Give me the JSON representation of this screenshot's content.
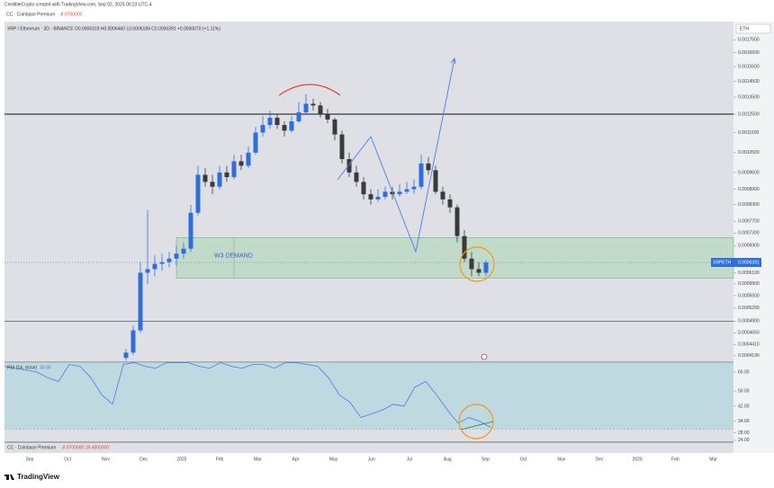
{
  "header": "CredibleCrypto created with TradingView.com, Sep 02, 2025 00:23 UTC-4",
  "toolbar": {
    "indicator": "CC · Coinbase Premium",
    "value": "-8.9700000"
  },
  "footer": "TradingView",
  "chart_data": {
    "type": "candlestick",
    "symbol_info": "XRP / Ethereum · 3D · BINANCE   O0.0006319 H0.0006460 L0.0006184 C0.0006391 +0.0000070 (+1.11%)",
    "currency": "ETH",
    "log_scale": true,
    "up_color": "#2f6fdc",
    "down_color": "#3a3a3a",
    "ylim": [
      0.000407,
      0.0019
    ],
    "yticks": [
      {
        "value": 0.00175,
        "label": "0.0017500"
      },
      {
        "value": 0.00165,
        "label": "0.0016500"
      },
      {
        "value": 0.00155,
        "label": "0.0015500"
      },
      {
        "value": 0.00145,
        "label": "0.0014500"
      },
      {
        "value": 0.00135,
        "label": "0.0013500"
      },
      {
        "value": 0.00125,
        "label": "0.0012500"
      },
      {
        "value": 0.00115,
        "label": "0.0011500"
      },
      {
        "value": 0.00105,
        "label": "0.0010500"
      },
      {
        "value": 0.00096,
        "label": "0.0009600"
      },
      {
        "value": 0.00089,
        "label": "0.0008900"
      },
      {
        "value": 0.00083,
        "label": "0.0008300"
      },
      {
        "value": 0.00077,
        "label": "0.0007700"
      },
      {
        "value": 0.00073,
        "label": "0.0007300"
      },
      {
        "value": 0.00069,
        "label": "0.0006900"
      },
      {
        "value": 0.00061,
        "label": "0.0006100"
      },
      {
        "value": 0.00058,
        "label": "0.0005800"
      },
      {
        "value": 0.00055,
        "label": "0.0005500"
      },
      {
        "value": 0.00052,
        "label": "0.0005200"
      },
      {
        "value": 0.00049,
        "label": "0.0004900"
      },
      {
        "value": 0.000465,
        "label": "0.0004650"
      },
      {
        "value": 0.000441,
        "label": "0.0004410"
      },
      {
        "value": 0.000419,
        "label": "0.0004190"
      }
    ],
    "time_labels": [
      "Sep",
      "Oct",
      "Nov",
      "Dec",
      "2025",
      "Feb",
      "Mar",
      "Apr",
      "May",
      "Jun",
      "Jul",
      "Aug",
      "Sep",
      "Oct",
      "Nov",
      "Dec",
      "2026",
      "Feb",
      "Mar"
    ],
    "ohlc": [
      [
        0.000415,
        0.000432,
        0.00041,
        0.000425
      ],
      [
        0.000425,
        0.00048,
        0.00042,
        0.00047
      ],
      [
        0.00047,
        0.00064,
        0.000465,
        0.00061
      ],
      [
        0.00061,
        0.00081,
        0.00058,
        0.00062
      ],
      [
        0.00062,
        0.00066,
        0.0006,
        0.000635
      ],
      [
        0.000635,
        0.000665,
        0.000615,
        0.00064
      ],
      [
        0.00064,
        0.00067,
        0.000625,
        0.00065
      ],
      [
        0.00065,
        0.00069,
        0.00063,
        0.000665
      ],
      [
        0.000665,
        0.0007,
        0.00065,
        0.00068
      ],
      [
        0.00068,
        0.00083,
        0.00067,
        0.0008
      ],
      [
        0.0008,
        0.00099,
        0.00079,
        0.00095
      ],
      [
        0.00095,
        0.00098,
        0.0009,
        0.00092
      ],
      [
        0.00092,
        0.00095,
        0.00087,
        0.0009
      ],
      [
        0.0009,
        0.00099,
        0.00089,
        0.00096
      ],
      [
        0.00096,
        0.00099,
        0.00092,
        0.00094
      ],
      [
        0.00094,
        0.00104,
        0.00093,
        0.00101
      ],
      [
        0.00101,
        0.00104,
        0.00097,
        0.00099
      ],
      [
        0.00099,
        0.00108,
        0.00098,
        0.00105
      ],
      [
        0.00105,
        0.00118,
        0.00104,
        0.00115
      ],
      [
        0.00115,
        0.00124,
        0.00113,
        0.00119
      ],
      [
        0.00119,
        0.00127,
        0.00117,
        0.00123
      ],
      [
        0.00123,
        0.00125,
        0.00117,
        0.00119
      ],
      [
        0.00119,
        0.00121,
        0.00113,
        0.00116
      ],
      [
        0.00116,
        0.00124,
        0.00115,
        0.00121
      ],
      [
        0.00121,
        0.00132,
        0.0012,
        0.00126
      ],
      [
        0.00126,
        0.00137,
        0.00125,
        0.00131
      ],
      [
        0.00131,
        0.00134,
        0.00127,
        0.0013
      ],
      [
        0.0013,
        0.00132,
        0.00123,
        0.00125
      ],
      [
        0.00125,
        0.00128,
        0.0012,
        0.00122
      ],
      [
        0.00122,
        0.00123,
        0.00111,
        0.00114
      ],
      [
        0.00114,
        0.00116,
        0.001,
        0.00102
      ],
      [
        0.00102,
        0.00105,
        0.00094,
        0.00096
      ],
      [
        0.00096,
        0.00099,
        0.0009,
        0.00092
      ],
      [
        0.00092,
        0.00094,
        0.00085,
        0.00087
      ],
      [
        0.00087,
        0.00089,
        0.00083,
        0.00085
      ],
      [
        0.00085,
        0.00089,
        0.00084,
        0.00086
      ],
      [
        0.00086,
        0.0009,
        0.00085,
        0.00088
      ],
      [
        0.00088,
        0.0009,
        0.00085,
        0.00087
      ],
      [
        0.00087,
        0.00091,
        0.00086,
        0.00088
      ],
      [
        0.00088,
        0.00092,
        0.00087,
        0.00089
      ],
      [
        0.00089,
        0.00093,
        0.00087,
        0.0009
      ],
      [
        0.0009,
        0.00104,
        0.00089,
        0.001
      ],
      [
        0.001,
        0.00103,
        0.00095,
        0.00097
      ],
      [
        0.00097,
        0.00099,
        0.00087,
        0.00088
      ],
      [
        0.00088,
        0.0009,
        0.00083,
        0.00085
      ],
      [
        0.00085,
        0.00087,
        0.0008,
        0.00082
      ],
      [
        0.00082,
        0.00083,
        0.0007,
        0.00072
      ],
      [
        0.00072,
        0.00074,
        0.00064,
        0.00065
      ],
      [
        0.00065,
        0.00067,
        0.0006,
        0.00062
      ],
      [
        0.00062,
        0.00064,
        0.0006,
        0.00061
      ],
      [
        0.00061,
        0.000645,
        0.0006,
        0.000639
      ]
    ],
    "horizontal_lines": [
      0.00125,
      0.00049
    ],
    "zone": {
      "label": "W3 DEMAND",
      "top": 0.000715,
      "bottom": 0.000595,
      "color": "#9fd3a8"
    },
    "last_price": {
      "name": "XRPETH",
      "value": 0.0006391,
      "label": "0.0006391",
      "color": "#2f6fdc"
    },
    "rsi": {
      "title": "RSI (14, close)",
      "value_label": "30.90",
      "color": "#4a7de8",
      "ylim": [
        23,
        65.2
      ],
      "yticks": [
        {
          "value": 60,
          "label": "60.00"
        },
        {
          "value": 50,
          "label": "50.00"
        },
        {
          "value": 42,
          "label": "42.00"
        },
        {
          "value": 34,
          "label": "34.00"
        },
        {
          "value": 28,
          "label": "28.00"
        },
        {
          "value": 24,
          "label": "24.00"
        }
      ],
      "band": [
        30,
        65.2
      ],
      "values": [
        63,
        62,
        61,
        60,
        57,
        55,
        64,
        63,
        57,
        48,
        43,
        64,
        65,
        63,
        62,
        65,
        65,
        65,
        63,
        62,
        65,
        63,
        62,
        64,
        64,
        62,
        65,
        65,
        64,
        63,
        57,
        48,
        44,
        36,
        38,
        40,
        43,
        42,
        52,
        55,
        48,
        40,
        33,
        36,
        34,
        30.9
      ]
    },
    "premium_pane": {
      "title": "CC · Coinbase Premium",
      "values_text": "-8.9700000   19.4800000"
    }
  }
}
